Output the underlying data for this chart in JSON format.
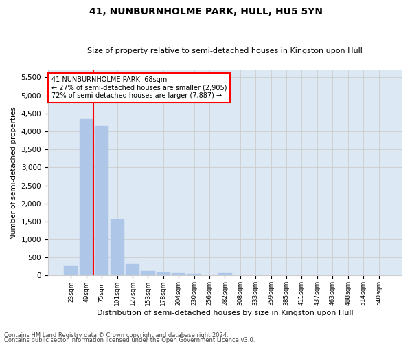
{
  "title": "41, NUNBURNHOLME PARK, HULL, HU5 5YN",
  "subtitle": "Size of property relative to semi-detached houses in Kingston upon Hull",
  "xlabel": "Distribution of semi-detached houses by size in Kingston upon Hull",
  "ylabel": "Number of semi-detached properties",
  "footer1": "Contains HM Land Registry data © Crown copyright and database right 2024.",
  "footer2": "Contains public sector information licensed under the Open Government Licence v3.0.",
  "categories": [
    "23sqm",
    "49sqm",
    "75sqm",
    "101sqm",
    "127sqm",
    "153sqm",
    "178sqm",
    "204sqm",
    "230sqm",
    "256sqm",
    "282sqm",
    "308sqm",
    "333sqm",
    "359sqm",
    "385sqm",
    "411sqm",
    "437sqm",
    "463sqm",
    "488sqm",
    "514sqm",
    "540sqm"
  ],
  "values": [
    270,
    4350,
    4150,
    1550,
    330,
    130,
    80,
    60,
    55,
    0,
    60,
    0,
    0,
    0,
    0,
    0,
    0,
    0,
    0,
    0,
    0
  ],
  "bar_color": "#aec6e8",
  "bar_edge_color": "#aec6e8",
  "vline_color": "red",
  "annotation_text": "41 NUNBURNHOLME PARK: 68sqm\n← 27% of semi-detached houses are smaller (2,905)\n72% of semi-detached houses are larger (7,887) →",
  "annotation_box_color": "white",
  "annotation_box_edge": "red",
  "ylim": [
    0,
    5700
  ],
  "yticks": [
    0,
    500,
    1000,
    1500,
    2000,
    2500,
    3000,
    3500,
    4000,
    4500,
    5000,
    5500
  ],
  "grid_color": "#cccccc",
  "background_color": "#dde8f5"
}
